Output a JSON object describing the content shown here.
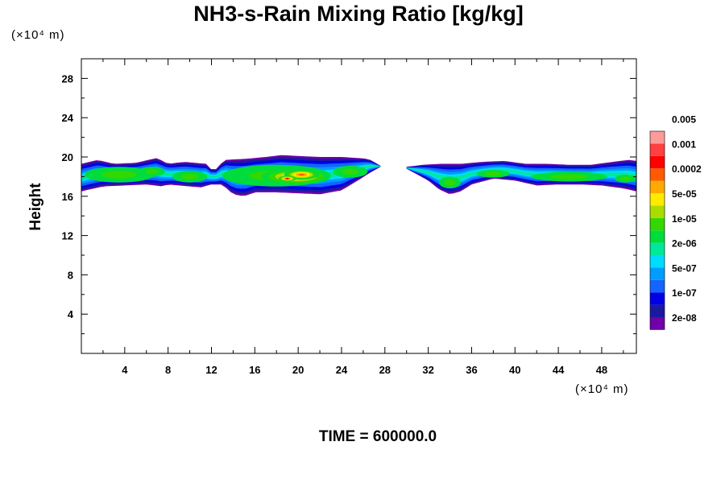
{
  "chart_data": {
    "type": "heatmap",
    "title": "NH3-s-Rain Mixing Ratio [kg/kg]",
    "xlabel": "",
    "ylabel": "Height",
    "x_unit": "(×10⁴ m)",
    "y_unit": "(×10⁴ m)",
    "xlim": [
      0,
      51.2
    ],
    "ylim": [
      0,
      30
    ],
    "x_ticks": [
      4,
      8,
      12,
      16,
      20,
      24,
      28,
      32,
      36,
      40,
      44,
      48
    ],
    "y_ticks": [
      4,
      8,
      12,
      16,
      20,
      24,
      28
    ],
    "footer": "TIME = 600000.0",
    "colorbar": {
      "levels": [
        "2e-08",
        "1e-07",
        "5e-07",
        "2e-06",
        "1e-05",
        "5e-05",
        "0.0002",
        "0.001",
        "0.005"
      ],
      "colors": [
        "#7000a8",
        "#1a1aa0",
        "#0000e6",
        "#1464ff",
        "#009cff",
        "#00dcff",
        "#00e89a",
        "#00dc3c",
        "#32d800",
        "#aadc00",
        "#ffea00",
        "#ffaa00",
        "#ff5a00",
        "#ff0000",
        "#ff4040",
        "#ff9a9a"
      ]
    },
    "regions": [
      {
        "x_range": [
          0,
          27.6
        ],
        "top": [
          [
            0,
            19.3
          ],
          [
            1.5,
            19.7
          ],
          [
            3,
            19.3
          ],
          [
            5,
            19.4
          ],
          [
            7,
            19.9
          ],
          [
            8,
            19.3
          ],
          [
            9.5,
            19.5
          ],
          [
            11.5,
            19.3
          ],
          [
            12.2,
            18.5
          ],
          [
            13.2,
            19.7
          ],
          [
            15,
            19.8
          ],
          [
            17,
            20.0
          ],
          [
            18.5,
            20.2
          ],
          [
            20,
            20.1
          ],
          [
            22,
            20.0
          ],
          [
            24,
            20.0
          ],
          [
            25.5,
            19.9
          ],
          [
            26.5,
            19.8
          ],
          [
            27.3,
            19.3
          ],
          [
            27.6,
            19.1
          ]
        ],
        "bottom": [
          [
            0,
            16.5
          ],
          [
            2,
            17.0
          ],
          [
            4,
            17.1
          ],
          [
            6,
            17.2
          ],
          [
            7.5,
            17.0
          ],
          [
            8,
            17.2
          ],
          [
            10,
            17.0
          ],
          [
            11,
            16.9
          ],
          [
            12,
            17.2
          ],
          [
            13,
            17.2
          ],
          [
            14,
            16.2
          ],
          [
            15,
            16.0
          ],
          [
            16,
            16.4
          ],
          [
            18,
            16.4
          ],
          [
            20,
            16.3
          ],
          [
            22,
            16.2
          ],
          [
            24,
            16.6
          ],
          [
            25.5,
            17.6
          ],
          [
            26.5,
            18.3
          ],
          [
            27.6,
            19.0
          ]
        ],
        "cores": [
          {
            "cx": 3.5,
            "cy": 18.2,
            "rx": 3.2,
            "ry": 0.8,
            "level": 8
          },
          {
            "cx": 6.5,
            "cy": 18.5,
            "rx": 1.2,
            "ry": 0.5,
            "level": 8
          },
          {
            "cx": 10.0,
            "cy": 18.0,
            "rx": 1.6,
            "ry": 0.6,
            "level": 8
          },
          {
            "cx": 18.0,
            "cy": 18.1,
            "rx": 5.0,
            "ry": 1.1,
            "level": 8
          },
          {
            "cx": 19.8,
            "cy": 18.0,
            "rx": 3.2,
            "ry": 0.8,
            "level": 11
          },
          {
            "cx": 20.3,
            "cy": 18.2,
            "rx": 1.6,
            "ry": 0.5,
            "level": 12
          },
          {
            "cx": 19.0,
            "cy": 17.8,
            "rx": 0.8,
            "ry": 0.28,
            "level": 13
          },
          {
            "cx": 24.8,
            "cy": 18.5,
            "rx": 1.6,
            "ry": 0.6,
            "level": 8
          }
        ]
      },
      {
        "x_range": [
          30.0,
          51.2
        ],
        "top": [
          [
            30.0,
            19.0
          ],
          [
            31.5,
            19.2
          ],
          [
            33,
            19.3
          ],
          [
            35,
            19.3
          ],
          [
            37,
            19.5
          ],
          [
            39,
            19.6
          ],
          [
            41,
            19.3
          ],
          [
            43,
            19.3
          ],
          [
            45,
            19.2
          ],
          [
            47,
            19.2
          ],
          [
            49,
            19.5
          ],
          [
            50.5,
            19.7
          ],
          [
            51.2,
            19.6
          ]
        ],
        "bottom": [
          [
            30.0,
            18.8
          ],
          [
            31,
            18.2
          ],
          [
            32,
            17.6
          ],
          [
            33,
            16.7
          ],
          [
            34,
            16.2
          ],
          [
            35,
            16.5
          ],
          [
            36,
            17.2
          ],
          [
            38,
            17.8
          ],
          [
            40,
            17.6
          ],
          [
            42,
            17.1
          ],
          [
            44,
            17.2
          ],
          [
            46,
            17.2
          ],
          [
            48,
            17.1
          ],
          [
            50,
            16.8
          ],
          [
            51.2,
            16.5
          ]
        ],
        "cores": [
          {
            "cx": 34.0,
            "cy": 17.4,
            "rx": 1.0,
            "ry": 0.6,
            "level": 8
          },
          {
            "cx": 38.0,
            "cy": 18.3,
            "rx": 1.5,
            "ry": 0.4,
            "level": 8
          },
          {
            "cx": 45.0,
            "cy": 18.0,
            "rx": 3.5,
            "ry": 0.5,
            "level": 8
          },
          {
            "cx": 50.2,
            "cy": 17.8,
            "rx": 1.0,
            "ry": 0.4,
            "level": 8
          }
        ]
      }
    ]
  }
}
